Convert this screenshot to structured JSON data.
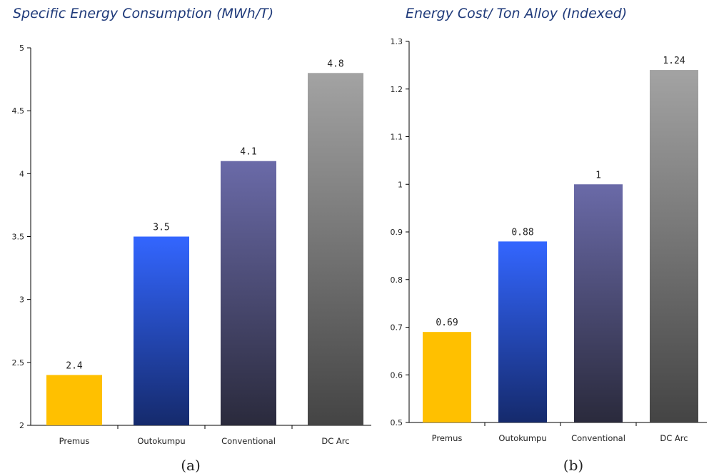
{
  "chart_data": [
    {
      "type": "bar",
      "title": "Specific Energy Consumption (MWh/T)",
      "caption": "(a)",
      "categories": [
        "Premus",
        "Outokumpu",
        "Conventional",
        "DC Arc"
      ],
      "values": [
        2.4,
        3.5,
        4.1,
        4.8
      ],
      "data_labels": [
        "2.4",
        "3.5",
        "4.1",
        "4.8"
      ],
      "ylim": [
        2,
        5
      ],
      "yticks": [
        2,
        2.5,
        3,
        3.5,
        4,
        4.5,
        5
      ],
      "ytick_labels": [
        "2",
        "2.5",
        "3",
        "3.5",
        "4",
        "4.5",
        "5"
      ],
      "grid": false,
      "xlabel": "",
      "ylabel": "",
      "bar_colors": [
        {
          "top": "#ffc000",
          "bottom": "#ffc000"
        },
        {
          "top": "#3366ff",
          "bottom": "#152a6c"
        },
        {
          "top": "#6a6aa8",
          "bottom": "#2a2a3c"
        },
        {
          "top": "#a3a3a3",
          "bottom": "#444444"
        }
      ]
    },
    {
      "type": "bar",
      "title": "Energy Cost/ Ton Alloy (Indexed)",
      "caption": "(b)",
      "categories": [
        "Premus",
        "Outokumpu",
        "Conventional",
        "DC Arc"
      ],
      "values": [
        0.69,
        0.88,
        1.0,
        1.24
      ],
      "data_labels": [
        "0.69",
        "0.88",
        "1",
        "1.24"
      ],
      "ylim": [
        0.5,
        1.3
      ],
      "yticks": [
        0.5,
        0.6,
        0.7,
        0.8,
        0.9,
        1.0,
        1.1,
        1.2,
        1.3
      ],
      "ytick_labels": [
        "0.5",
        "0.6",
        "0.7",
        "0.8",
        "0.9",
        "1",
        "1.1",
        "1.2",
        "1.3"
      ],
      "grid": false,
      "xlabel": "",
      "ylabel": "",
      "bar_colors": [
        {
          "top": "#ffc000",
          "bottom": "#ffc000"
        },
        {
          "top": "#3366ff",
          "bottom": "#152a6c"
        },
        {
          "top": "#6a6aa8",
          "bottom": "#2a2a3c"
        },
        {
          "top": "#a3a3a3",
          "bottom": "#444444"
        }
      ]
    }
  ],
  "styles": {
    "title_color": "#1f3a7a",
    "axis_color": "#000000"
  }
}
